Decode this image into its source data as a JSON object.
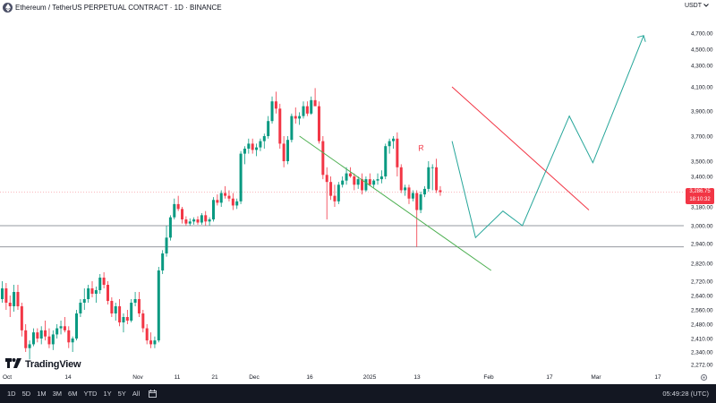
{
  "header": {
    "title": "Ethereum / TetherUS PERPETUAL CONTRACT · 1D · BINANCE",
    "currency": "USDT"
  },
  "logo_text": "TradingView",
  "price_label": {
    "price": "3,286.75",
    "countdown": "18:10:32"
  },
  "toolbar": {
    "timeframes": [
      "1D",
      "5D",
      "1M",
      "3M",
      "6M",
      "YTD",
      "1Y",
      "5Y",
      "All"
    ]
  },
  "clock": "05:49:28 (UTC)",
  "colors": {
    "up": "#089981",
    "down": "#f23645",
    "resistance": "#f23645",
    "support": "#4caf50",
    "projection": "#26a69a",
    "toolbar_bg": "#131722"
  },
  "icons": [
    "ethereum-icon",
    "chevron-down-icon",
    "tradingview-logo-icon",
    "calendar-icon",
    "gear-icon"
  ],
  "chart_data": {
    "type": "candlestick",
    "y_ticks": [
      "4,700.00",
      "4,500.00",
      "4,300.00",
      "4,100.00",
      "3,900.00",
      "3,700.00",
      "3,500.00",
      "3,400.00",
      "3,180.00",
      "3,000.00",
      "2,940.00",
      "2,820.00",
      "2,720.00",
      "2,640.00",
      "2,560.00",
      "2,480.00",
      "2,410.00",
      "2,340.00",
      "2,272.00"
    ],
    "x_ticks": [
      "Oct",
      "14",
      "Nov",
      "11",
      "21",
      "Dec",
      "16",
      "2025",
      "13",
      "Feb",
      "17",
      "Mar",
      "17"
    ],
    "candles": [
      [
        2620,
        2720,
        2600,
        2680
      ],
      [
        2680,
        2710,
        2560,
        2600
      ],
      [
        2600,
        2640,
        2520,
        2580
      ],
      [
        2580,
        2700,
        2550,
        2660
      ],
      [
        2660,
        2700,
        2560,
        2580
      ],
      [
        2580,
        2600,
        2420,
        2450
      ],
      [
        2450,
        2480,
        2340,
        2360
      ],
      [
        2360,
        2400,
        2300,
        2380
      ],
      [
        2380,
        2460,
        2370,
        2440
      ],
      [
        2440,
        2460,
        2390,
        2410
      ],
      [
        2410,
        2470,
        2380,
        2450
      ],
      [
        2450,
        2500,
        2400,
        2420
      ],
      [
        2420,
        2460,
        2360,
        2380
      ],
      [
        2380,
        2450,
        2350,
        2430
      ],
      [
        2430,
        2480,
        2410,
        2460
      ],
      [
        2460,
        2500,
        2430,
        2470
      ],
      [
        2470,
        2520,
        2440,
        2450
      ],
      [
        2450,
        2470,
        2360,
        2390
      ],
      [
        2390,
        2420,
        2340,
        2410
      ],
      [
        2410,
        2560,
        2400,
        2540
      ],
      [
        2540,
        2620,
        2520,
        2600
      ],
      [
        2600,
        2680,
        2560,
        2620
      ],
      [
        2620,
        2700,
        2600,
        2680
      ],
      [
        2680,
        2720,
        2630,
        2650
      ],
      [
        2650,
        2690,
        2600,
        2670
      ],
      [
        2670,
        2760,
        2650,
        2740
      ],
      [
        2740,
        2770,
        2680,
        2700
      ],
      [
        2700,
        2720,
        2590,
        2610
      ],
      [
        2610,
        2630,
        2520,
        2540
      ],
      [
        2540,
        2600,
        2500,
        2580
      ],
      [
        2580,
        2620,
        2470,
        2490
      ],
      [
        2490,
        2540,
        2440,
        2520
      ],
      [
        2520,
        2560,
        2480,
        2500
      ],
      [
        2500,
        2620,
        2490,
        2600
      ],
      [
        2600,
        2660,
        2580,
        2620
      ],
      [
        2620,
        2660,
        2520,
        2540
      ],
      [
        2540,
        2560,
        2440,
        2460
      ],
      [
        2460,
        2480,
        2380,
        2400
      ],
      [
        2400,
        2440,
        2360,
        2380
      ],
      [
        2380,
        2420,
        2360,
        2400
      ],
      [
        2400,
        2800,
        2390,
        2780
      ],
      [
        2780,
        2900,
        2760,
        2880
      ],
      [
        2880,
        3000,
        2860,
        2960
      ],
      [
        2960,
        3100,
        2950,
        3080
      ],
      [
        3080,
        3240,
        3060,
        3200
      ],
      [
        3200,
        3260,
        3140,
        3160
      ],
      [
        3160,
        3180,
        3020,
        3060
      ],
      [
        3060,
        3090,
        3000,
        3020
      ],
      [
        3020,
        3070,
        3000,
        3040
      ],
      [
        3040,
        3080,
        3010,
        3060
      ],
      [
        3060,
        3090,
        3010,
        3030
      ],
      [
        3030,
        3120,
        3010,
        3100
      ],
      [
        3100,
        3140,
        3000,
        3040
      ],
      [
        3040,
        3080,
        3000,
        3060
      ],
      [
        3060,
        3250,
        3040,
        3230
      ],
      [
        3230,
        3270,
        3190,
        3210
      ],
      [
        3210,
        3300,
        3180,
        3280
      ],
      [
        3280,
        3330,
        3240,
        3260
      ],
      [
        3260,
        3300,
        3220,
        3240
      ],
      [
        3240,
        3280,
        3150,
        3190
      ],
      [
        3190,
        3240,
        3160,
        3220
      ],
      [
        3220,
        3580,
        3200,
        3560
      ],
      [
        3560,
        3620,
        3480,
        3600
      ],
      [
        3600,
        3680,
        3560,
        3640
      ],
      [
        3640,
        3680,
        3560,
        3590
      ],
      [
        3590,
        3640,
        3540,
        3610
      ],
      [
        3610,
        3680,
        3580,
        3660
      ],
      [
        3660,
        3720,
        3600,
        3700
      ],
      [
        3700,
        3860,
        3680,
        3820
      ],
      [
        3820,
        4020,
        3800,
        3980
      ],
      [
        3980,
        4060,
        3880,
        3920
      ],
      [
        3920,
        3960,
        3600,
        3640
      ],
      [
        3640,
        3700,
        3460,
        3500
      ],
      [
        3500,
        3700,
        3480,
        3670
      ],
      [
        3670,
        3880,
        3650,
        3860
      ],
      [
        3860,
        3930,
        3800,
        3840
      ],
      [
        3840,
        3890,
        3790,
        3860
      ],
      [
        3860,
        3980,
        3840,
        3940
      ],
      [
        3940,
        3980,
        3860,
        3880
      ],
      [
        3880,
        4020,
        3870,
        3990
      ],
      [
        3990,
        4090,
        3950,
        3940
      ],
      [
        3940,
        3980,
        3640,
        3660
      ],
      [
        3660,
        3700,
        3380,
        3410
      ],
      [
        3410,
        3460,
        3060,
        3360
      ],
      [
        3360,
        3400,
        3230,
        3260
      ],
      [
        3260,
        3340,
        3180,
        3220
      ],
      [
        3220,
        3360,
        3200,
        3340
      ],
      [
        3340,
        3400,
        3320,
        3370
      ],
      [
        3370,
        3460,
        3340,
        3420
      ],
      [
        3420,
        3460,
        3390,
        3400
      ],
      [
        3400,
        3420,
        3300,
        3340
      ],
      [
        3340,
        3400,
        3310,
        3380
      ],
      [
        3380,
        3420,
        3270,
        3300
      ],
      [
        3300,
        3400,
        3290,
        3380
      ],
      [
        3380,
        3420,
        3330,
        3340
      ],
      [
        3340,
        3380,
        3320,
        3370
      ],
      [
        3370,
        3420,
        3340,
        3380
      ],
      [
        3380,
        3440,
        3350,
        3400
      ],
      [
        3400,
        3640,
        3380,
        3620
      ],
      [
        3620,
        3680,
        3560,
        3660
      ],
      [
        3660,
        3700,
        3600,
        3680
      ],
      [
        3680,
        3730,
        3400,
        3460
      ],
      [
        3460,
        3480,
        3280,
        3300
      ],
      [
        3300,
        3340,
        3260,
        3320
      ],
      [
        3320,
        3340,
        3200,
        3240
      ],
      [
        3240,
        3300,
        3220,
        3280
      ],
      [
        3280,
        3300,
        2920,
        3150
      ],
      [
        3150,
        3290,
        3120,
        3270
      ],
      [
        3270,
        3330,
        3250,
        3310
      ],
      [
        3310,
        3500,
        3290,
        3460
      ],
      [
        3460,
        3480,
        3300,
        3460
      ],
      [
        3460,
        3520,
        3280,
        3300
      ],
      [
        3300,
        3330,
        3260,
        3286.75
      ]
    ],
    "annotations": {
      "resistance_line": [
        [
          3,
          4100
        ],
        [
          38,
          3150
        ]
      ],
      "resistance_label": "R",
      "support_line": [
        [
          -36,
          3700
        ],
        [
          13,
          2780
        ]
      ],
      "horizontal_levels": [
        3000,
        2920
      ],
      "projection_path": [
        [
          3,
          3660
        ],
        [
          9,
          2960
        ],
        [
          16,
          3140
        ],
        [
          21,
          3000
        ],
        [
          33,
          3860
        ],
        [
          39,
          3490
        ],
        [
          52,
          4670
        ]
      ]
    }
  }
}
